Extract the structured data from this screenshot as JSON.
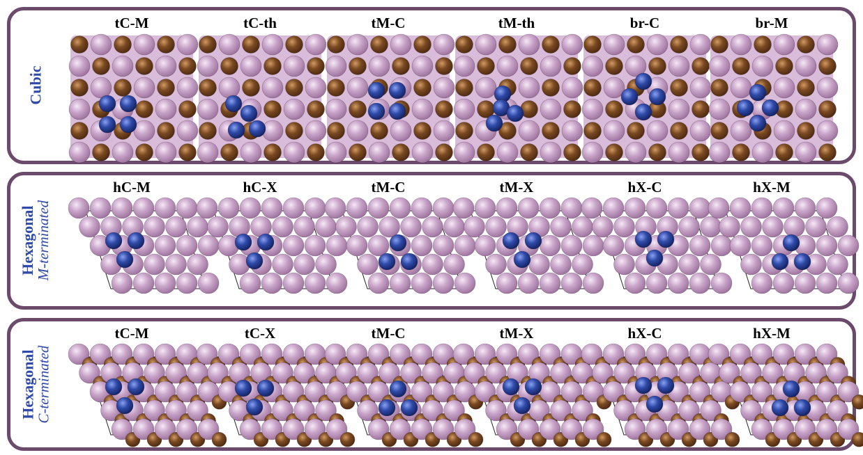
{
  "colors": {
    "metal": "#c9a5c9",
    "carbon": "#7a4a22",
    "x_atom": "#e4d2cc",
    "adsorbate": "#2f4aa8",
    "frame": "#6b4a6b",
    "side_label": "#2f4aa8"
  },
  "panels": [
    {
      "title": "Cubic",
      "subtitle": "",
      "lattice": "cubic",
      "slabs": [
        {
          "label": "tC-M",
          "site": "tC-M"
        },
        {
          "label": "tC-th",
          "site": "tC-th"
        },
        {
          "label": "tM-C",
          "site": "tM-C"
        },
        {
          "label": "tM-th",
          "site": "tM-th"
        },
        {
          "label": "br-C",
          "site": "br-C"
        },
        {
          "label": "br-M",
          "site": "br-M"
        }
      ]
    },
    {
      "title": "Hexagonal",
      "subtitle": "M-terminated",
      "lattice": "hex-M",
      "slabs": [
        {
          "label": "hC-M",
          "site": "up"
        },
        {
          "label": "hC-X",
          "site": "up"
        },
        {
          "label": "tM-C",
          "site": "down"
        },
        {
          "label": "tM-X",
          "site": "up"
        },
        {
          "label": "hX-C",
          "site": "up"
        },
        {
          "label": "hX-M",
          "site": "down"
        }
      ]
    },
    {
      "title": "Hexagonal",
      "subtitle": "C-terminated",
      "lattice": "hex-C",
      "slabs": [
        {
          "label": "tC-M",
          "site": "up"
        },
        {
          "label": "tC-X",
          "site": "up"
        },
        {
          "label": "tM-C",
          "site": "down"
        },
        {
          "label": "tM-X",
          "site": "up"
        },
        {
          "label": "hX-C",
          "site": "up"
        },
        {
          "label": "hX-M",
          "site": "down"
        }
      ]
    }
  ]
}
